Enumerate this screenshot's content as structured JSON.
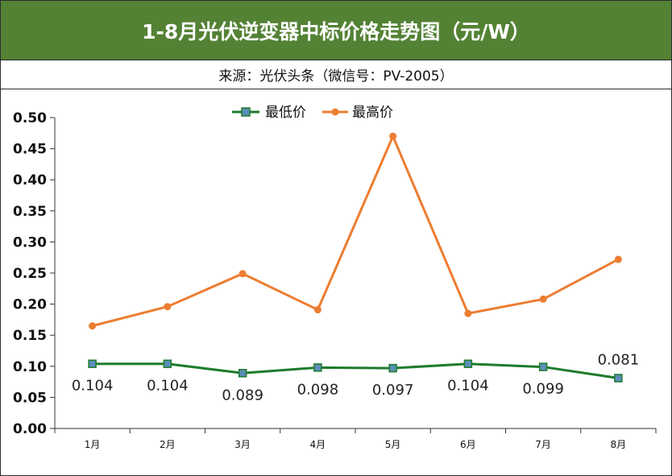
{
  "header": {
    "title": "1-8月光伏逆变器中标价格走势图（元/W）",
    "subtitle": "来源：光伏头条（微信号：PV-2005）"
  },
  "colors": {
    "title_bg": "#548235",
    "min_series": "#1e7b2c",
    "max_series": "#ed7d31",
    "min_marker_fill": "#5b8db8"
  },
  "chart_data": {
    "type": "line",
    "categories": [
      "1月",
      "2月",
      "3月",
      "4月",
      "5月",
      "6月",
      "7月",
      "8月"
    ],
    "ylim": [
      0,
      0.5
    ],
    "yticks": [
      "0.00",
      "0.05",
      "0.10",
      "0.15",
      "0.20",
      "0.25",
      "0.30",
      "0.35",
      "0.40",
      "0.45",
      "0.50"
    ],
    "legend_position": "top",
    "grid": false,
    "series": [
      {
        "name": "最低价",
        "values": [
          0.104,
          0.104,
          0.089,
          0.098,
          0.097,
          0.104,
          0.099,
          0.081
        ],
        "labels": [
          "0.104",
          "0.104",
          "0.089",
          "0.098",
          "0.097",
          "0.104",
          "0.099",
          "0.081"
        ]
      },
      {
        "name": "最高价",
        "values": [
          0.165,
          0.196,
          0.249,
          0.191,
          0.47,
          0.185,
          0.208,
          0.272
        ]
      }
    ]
  }
}
